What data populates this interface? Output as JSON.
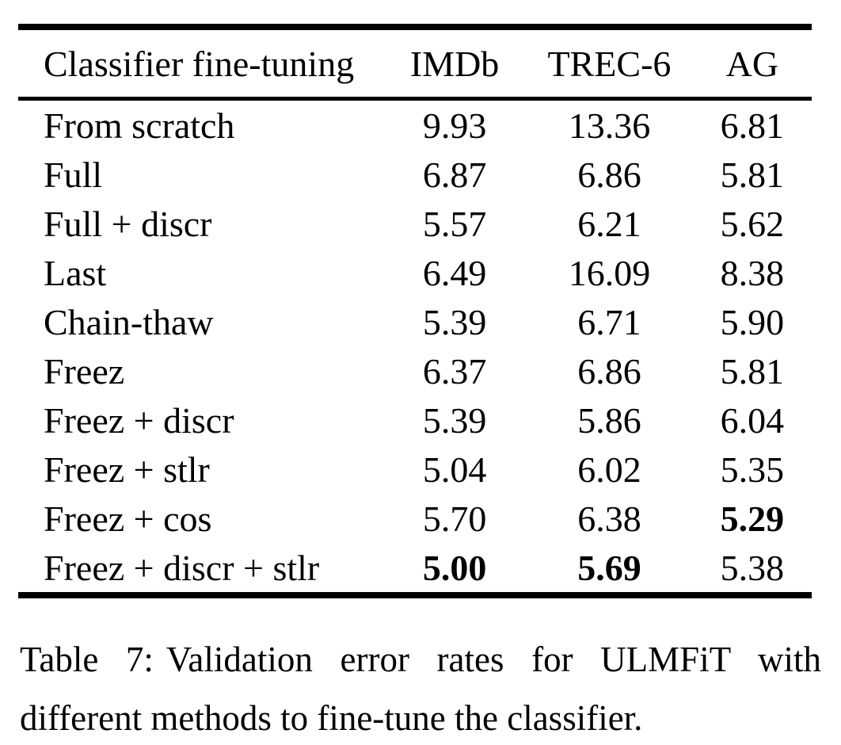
{
  "table": {
    "columns": [
      "Classifier fine-tuning",
      "IMDb",
      "TREC-6",
      "AG"
    ],
    "rows": [
      {
        "label": "From scratch",
        "values": [
          "9.93",
          "13.36",
          "6.81"
        ],
        "bold": [
          false,
          false,
          false
        ]
      },
      {
        "label": "Full",
        "values": [
          "6.87",
          "6.86",
          "5.81"
        ],
        "bold": [
          false,
          false,
          false
        ]
      },
      {
        "label": "Full + discr",
        "values": [
          "5.57",
          "6.21",
          "5.62"
        ],
        "bold": [
          false,
          false,
          false
        ]
      },
      {
        "label": "Last",
        "values": [
          "6.49",
          "16.09",
          "8.38"
        ],
        "bold": [
          false,
          false,
          false
        ]
      },
      {
        "label": "Chain-thaw",
        "values": [
          "5.39",
          "6.71",
          "5.90"
        ],
        "bold": [
          false,
          false,
          false
        ]
      },
      {
        "label": "Freez",
        "values": [
          "6.37",
          "6.86",
          "5.81"
        ],
        "bold": [
          false,
          false,
          false
        ]
      },
      {
        "label": "Freez + discr",
        "values": [
          "5.39",
          "5.86",
          "6.04"
        ],
        "bold": [
          false,
          false,
          false
        ]
      },
      {
        "label": "Freez + stlr",
        "values": [
          "5.04",
          "6.02",
          "5.35"
        ],
        "bold": [
          false,
          false,
          false
        ]
      },
      {
        "label": "Freez + cos",
        "values": [
          "5.70",
          "6.38",
          "5.29"
        ],
        "bold": [
          false,
          false,
          true
        ]
      },
      {
        "label": "Freez + discr + stlr",
        "values": [
          "5.00",
          "5.69",
          "5.38"
        ],
        "bold": [
          true,
          true,
          false
        ]
      }
    ]
  },
  "caption": {
    "label": "Table 7:",
    "text": "Validation error rates for ULMFiT with different methods to fine-tune the classifier."
  },
  "colors": {
    "text": "#000000",
    "background": "#ffffff",
    "rule": "#000000"
  }
}
